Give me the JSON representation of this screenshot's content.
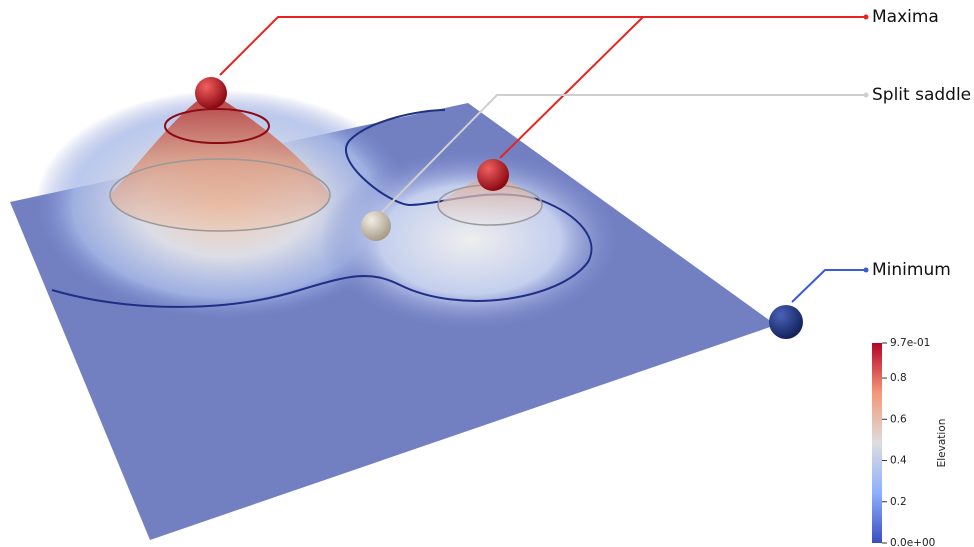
{
  "annotations": {
    "maxima": "Maxima",
    "split_saddle": "Split saddle",
    "minimum": "Minimum"
  },
  "colorbar": {
    "title": "Elevation",
    "range": [
      0,
      0.97
    ],
    "ticks": [
      {
        "value": 0.97,
        "label": "9.7e-01"
      },
      0.8,
      0.6,
      0.4,
      0.2,
      {
        "value": 0,
        "label": "0.0e+00"
      }
    ]
  }
}
